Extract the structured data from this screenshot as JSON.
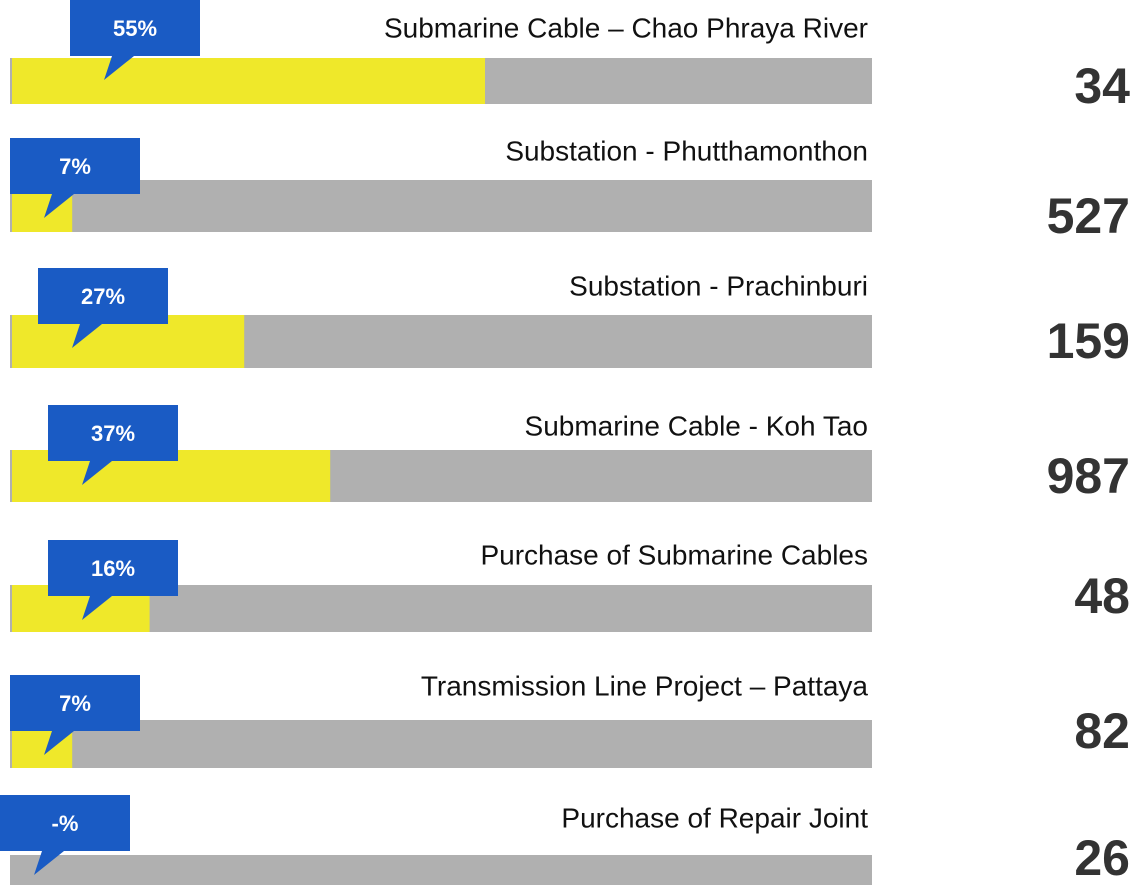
{
  "chart_data": {
    "type": "progress",
    "categories": [
      "Submarine Cable – Chao Phraya River",
      "Substation - Phutthamonthon",
      "Substation - Prachinburi",
      "Submarine Cable - Koh Tao",
      "Purchase of Submarine Cables",
      "Transmission Line Project – Pattaya",
      "Purchase of Repair Joint"
    ],
    "values": [
      55,
      7,
      27,
      37,
      16,
      7,
      null
    ],
    "value_labels": [
      "55%",
      "7%",
      "27%",
      "37%",
      "16%",
      "7%",
      "-%"
    ],
    "totals": [
      34,
      527,
      159,
      987,
      48,
      82,
      26
    ],
    "xlim": [
      0,
      100
    ],
    "color": "#efe82a",
    "track_color": "#b0b0b0",
    "callout_color": "#1a5bc4"
  }
}
